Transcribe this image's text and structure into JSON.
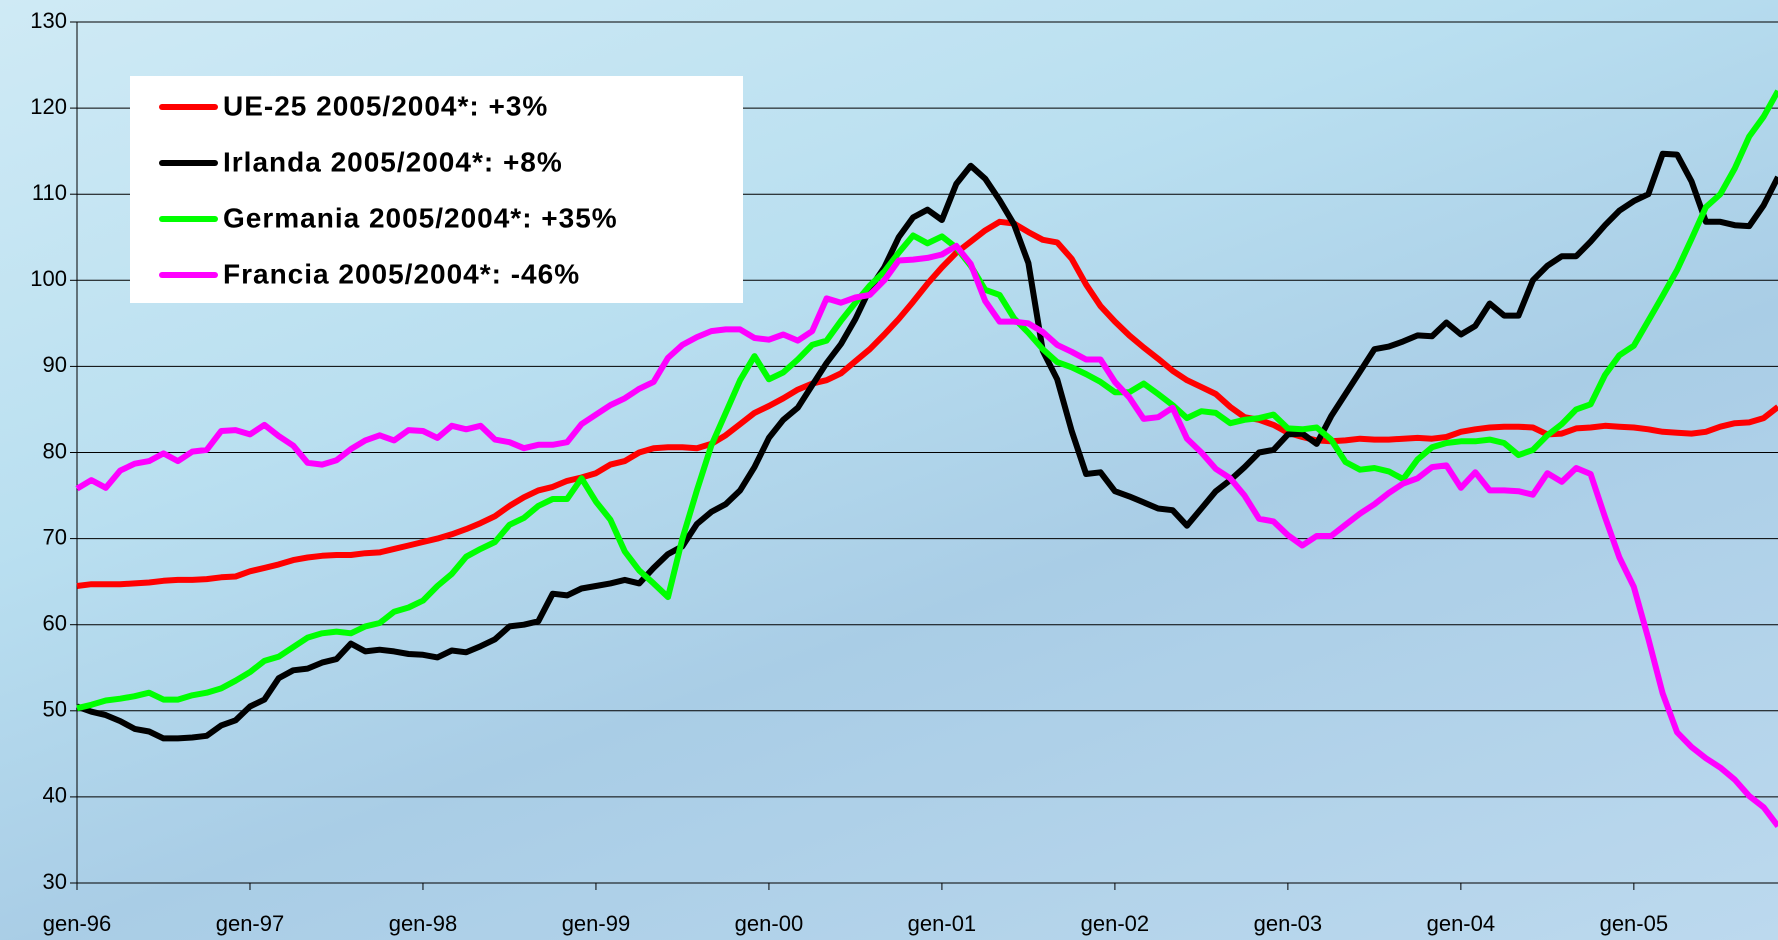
{
  "chart_data": {
    "type": "line",
    "categories": [
      "gen-96",
      null,
      null,
      null,
      null,
      null,
      null,
      null,
      null,
      null,
      null,
      null,
      "gen-97",
      null,
      null,
      null,
      null,
      null,
      null,
      null,
      null,
      null,
      null,
      null,
      "gen-98",
      null,
      null,
      null,
      null,
      null,
      null,
      null,
      null,
      null,
      null,
      null,
      "gen-99",
      null,
      null,
      null,
      null,
      null,
      null,
      null,
      null,
      null,
      null,
      null,
      "gen-00",
      null,
      null,
      null,
      null,
      null,
      null,
      null,
      null,
      null,
      null,
      null,
      "gen-01",
      null,
      null,
      null,
      null,
      null,
      null,
      null,
      null,
      null,
      null,
      null,
      "gen-02",
      null,
      null,
      null,
      null,
      null,
      null,
      null,
      null,
      null,
      null,
      null,
      "gen-03",
      null,
      null,
      null,
      null,
      null,
      null,
      null,
      null,
      null,
      null,
      null,
      "gen-04",
      null,
      null,
      null,
      null,
      null,
      null,
      null,
      null,
      null,
      null,
      null,
      "gen-05",
      null,
      null,
      null,
      null,
      null,
      null,
      null,
      null,
      null,
      null
    ],
    "series": [
      {
        "name": "UE-25 2005/2004*: +3%",
        "color": "#ff0000",
        "values": [
          64.5,
          64.7,
          64.7,
          64.7,
          64.8,
          64.9,
          65.1,
          65.2,
          65.2,
          65.3,
          65.5,
          65.6,
          66.2,
          66.6,
          67.0,
          67.5,
          67.8,
          68.0,
          68.1,
          68.1,
          68.3,
          68.4,
          68.8,
          69.2,
          69.6,
          70.0,
          70.5,
          71.1,
          71.8,
          72.6,
          73.8,
          74.8,
          75.6,
          76.0,
          76.7,
          77.1,
          77.6,
          78.6,
          79.0,
          80.0,
          80.5,
          80.6,
          80.6,
          80.5,
          81.0,
          82.0,
          83.3,
          84.6,
          85.4,
          86.3,
          87.3,
          88.0,
          88.4,
          89.2,
          90.6,
          92.0,
          93.7,
          95.5,
          97.5,
          99.6,
          101.5,
          103.2,
          104.5,
          105.8,
          106.8,
          106.6,
          105.6,
          104.7,
          104.4,
          102.5,
          99.5,
          97.0,
          95.2,
          93.6,
          92.2,
          90.9,
          89.5,
          88.4,
          87.6,
          86.8,
          85.3,
          84.1,
          83.8,
          83.2,
          82.3,
          81.8,
          81.4,
          81.3,
          81.4,
          81.6,
          81.5,
          81.5,
          81.6,
          81.7,
          81.6,
          81.8,
          82.4,
          82.7,
          82.9,
          83.0,
          83.0,
          82.9,
          82.1,
          82.2,
          82.8,
          82.9,
          83.1,
          83.0,
          82.9,
          82.7,
          82.4,
          82.3,
          82.2,
          82.4,
          83.0,
          83.4,
          83.5,
          84.0,
          85.3
        ]
      },
      {
        "name": "Irlanda 2005/2004*: +8%",
        "color": "#000000",
        "values": [
          50.5,
          49.9,
          49.5,
          48.8,
          47.9,
          47.6,
          46.8,
          46.8,
          46.9,
          47.1,
          48.3,
          48.9,
          50.5,
          51.3,
          53.8,
          54.7,
          54.9,
          55.6,
          56.0,
          57.8,
          56.9,
          57.1,
          56.9,
          56.6,
          56.5,
          56.2,
          57.0,
          56.8,
          57.5,
          58.3,
          59.8,
          60.0,
          60.4,
          63.6,
          63.4,
          64.2,
          64.5,
          64.8,
          65.2,
          64.8,
          66.6,
          68.2,
          69.1,
          71.7,
          73.1,
          74.0,
          75.6,
          78.3,
          81.7,
          83.8,
          85.2,
          87.8,
          90.4,
          92.6,
          95.5,
          99.0,
          101.5,
          105.0,
          107.3,
          108.2,
          107.0,
          111.2,
          113.3,
          111.8,
          109.3,
          106.5,
          102.0,
          91.8,
          88.5,
          82.5,
          77.5,
          77.7,
          75.5,
          74.9,
          74.2,
          73.5,
          73.3,
          71.5,
          73.5,
          75.5,
          76.8,
          78.3,
          80.0,
          80.3,
          82.1,
          82.2,
          81.0,
          84.2,
          86.8,
          89.4,
          92.0,
          92.3,
          92.9,
          93.6,
          93.5,
          95.1,
          93.7,
          94.7,
          97.3,
          95.9,
          95.9,
          100.0,
          101.7,
          102.8,
          102.8,
          104.5,
          106.4,
          108.1,
          109.2,
          110.0,
          114.7,
          114.6,
          111.5,
          106.8,
          106.8,
          106.4,
          106.3,
          108.7,
          112.0
        ]
      },
      {
        "name": "Germania 2005/2004*: +35%",
        "color": "#00ff00",
        "values": [
          50.3,
          50.7,
          51.2,
          51.4,
          51.7,
          52.1,
          51.3,
          51.3,
          51.8,
          52.1,
          52.6,
          53.5,
          54.5,
          55.8,
          56.3,
          57.4,
          58.5,
          59.0,
          59.2,
          59.0,
          59.8,
          60.2,
          61.5,
          62.0,
          62.8,
          64.5,
          65.9,
          67.9,
          68.8,
          69.6,
          71.6,
          72.4,
          73.8,
          74.6,
          74.6,
          77.0,
          74.3,
          72.2,
          68.5,
          66.3,
          64.8,
          63.2,
          70.0,
          75.6,
          80.8,
          84.6,
          88.4,
          91.2,
          88.5,
          89.3,
          90.8,
          92.5,
          93.0,
          95.3,
          97.4,
          99.4,
          101.0,
          103.2,
          105.2,
          104.3,
          105.1,
          103.8,
          101.7,
          98.9,
          98.3,
          95.6,
          93.9,
          92.0,
          90.5,
          89.9,
          89.1,
          88.2,
          87.0,
          87.0,
          88.0,
          86.8,
          85.5,
          84.0,
          84.8,
          84.6,
          83.4,
          83.8,
          84.0,
          84.4,
          82.8,
          82.7,
          82.9,
          81.5,
          78.9,
          78.0,
          78.2,
          77.8,
          76.9,
          79.2,
          80.6,
          81.1,
          81.3,
          81.3,
          81.5,
          81.1,
          79.7,
          80.3,
          82.0,
          83.3,
          85.0,
          85.6,
          89.0,
          91.3,
          92.4,
          95.3,
          98.2,
          101.2,
          104.8,
          108.5,
          110.0,
          113.0,
          116.7,
          119.0,
          122.0
        ]
      },
      {
        "name": "Francia 2005/2004*: -46%",
        "color": "#ff00ff",
        "values": [
          75.8,
          76.8,
          75.9,
          77.9,
          78.7,
          79.0,
          79.9,
          79.0,
          80.1,
          80.3,
          82.5,
          82.6,
          82.1,
          83.2,
          81.9,
          80.8,
          78.8,
          78.6,
          79.1,
          80.4,
          81.4,
          82.0,
          81.4,
          82.6,
          82.5,
          81.7,
          83.1,
          82.7,
          83.1,
          81.5,
          81.2,
          80.5,
          80.9,
          80.9,
          81.2,
          83.3,
          84.4,
          85.5,
          86.3,
          87.4,
          88.2,
          91.0,
          92.5,
          93.4,
          94.1,
          94.3,
          94.3,
          93.3,
          93.1,
          93.7,
          93.0,
          94.1,
          97.9,
          97.4,
          98.0,
          98.3,
          100.0,
          102.3,
          102.4,
          102.6,
          103.0,
          104.0,
          101.9,
          97.6,
          95.2,
          95.2,
          95.0,
          94.0,
          92.5,
          91.7,
          90.8,
          90.8,
          88.2,
          86.4,
          83.9,
          84.1,
          85.2,
          81.6,
          80.0,
          78.1,
          77.0,
          75.0,
          72.3,
          72.0,
          70.4,
          69.2,
          70.3,
          70.3,
          71.6,
          72.9,
          74.0,
          75.3,
          76.4,
          77.0,
          78.3,
          78.5,
          75.9,
          77.7,
          75.6,
          75.6,
          75.5,
          75.1,
          77.6,
          76.6,
          78.2,
          77.5,
          72.5,
          67.8,
          64.4,
          58.4,
          52.0,
          47.5,
          45.8,
          44.5,
          43.4,
          42.0,
          40.1,
          38.8,
          36.6
        ]
      }
    ],
    "ylim": [
      30,
      130
    ],
    "yticks": [
      30,
      40,
      50,
      60,
      70,
      80,
      90,
      100,
      110,
      120,
      130
    ],
    "grid": true,
    "legend": "top-left"
  }
}
